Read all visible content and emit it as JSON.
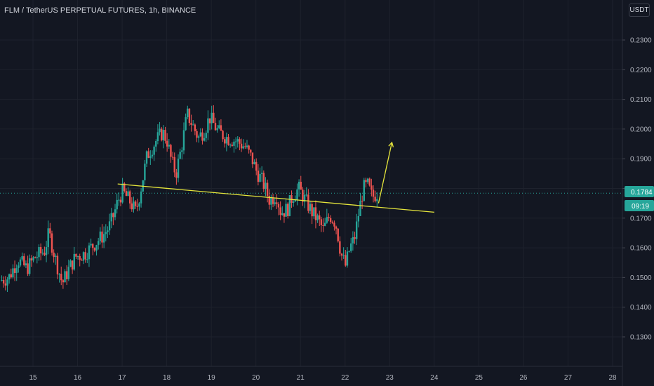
{
  "header": {
    "title": "FLM / TetherUS PERPETUAL FUTURES, 1h, BINANCE",
    "currency": "USDT"
  },
  "price_axis": {
    "last_price": "0.1784",
    "countdown": "09:19"
  },
  "colors": {
    "background": "#131722",
    "up": "#26a69a",
    "down": "#ef5350",
    "trendline": "#e6e63c",
    "last_price_tag": "#26a69a"
  },
  "chart_data": {
    "type": "candlestick",
    "yticks": [
      "0.2300",
      "0.2200",
      "0.2100",
      "0.2000",
      "0.1900",
      "0.1800",
      "0.1700",
      "0.1600",
      "0.1500",
      "0.1400",
      "0.1300"
    ],
    "xticks": [
      "15",
      "16",
      "17",
      "18",
      "19",
      "20",
      "21",
      "22",
      "23",
      "24",
      "25",
      "26",
      "27",
      "28"
    ],
    "ylim": [
      0.12,
      0.24
    ],
    "xlim": [
      14.29,
      28.4
    ],
    "last_price": 0.1784,
    "price_path": [
      [
        14.3,
        0.149
      ],
      [
        14.5,
        0.15
      ],
      [
        14.7,
        0.156
      ],
      [
        14.9,
        0.153
      ],
      [
        15.1,
        0.157
      ],
      [
        15.3,
        0.159
      ],
      [
        15.4,
        0.165
      ],
      [
        15.55,
        0.156
      ],
      [
        15.7,
        0.148
      ],
      [
        15.85,
        0.153
      ],
      [
        16.0,
        0.157
      ],
      [
        16.2,
        0.158
      ],
      [
        16.4,
        0.161
      ],
      [
        16.6,
        0.164
      ],
      [
        16.75,
        0.167
      ],
      [
        16.85,
        0.171
      ],
      [
        16.95,
        0.176
      ],
      [
        17.05,
        0.179
      ],
      [
        17.2,
        0.176
      ],
      [
        17.35,
        0.172
      ],
      [
        17.45,
        0.179
      ],
      [
        17.6,
        0.191
      ],
      [
        17.8,
        0.196
      ],
      [
        17.95,
        0.199
      ],
      [
        18.05,
        0.196
      ],
      [
        18.15,
        0.189
      ],
      [
        18.25,
        0.185
      ],
      [
        18.4,
        0.196
      ],
      [
        18.5,
        0.205
      ],
      [
        18.6,
        0.202
      ],
      [
        18.75,
        0.197
      ],
      [
        18.9,
        0.2
      ],
      [
        19.0,
        0.204
      ],
      [
        19.2,
        0.199
      ],
      [
        19.4,
        0.197
      ],
      [
        19.6,
        0.196
      ],
      [
        19.8,
        0.194
      ],
      [
        19.95,
        0.19
      ],
      [
        20.05,
        0.186
      ],
      [
        20.2,
        0.182
      ],
      [
        20.35,
        0.176
      ],
      [
        20.5,
        0.178
      ],
      [
        20.6,
        0.172
      ],
      [
        20.75,
        0.173
      ],
      [
        20.85,
        0.177
      ],
      [
        21.0,
        0.18
      ],
      [
        21.15,
        0.176
      ],
      [
        21.3,
        0.172
      ],
      [
        21.45,
        0.169
      ],
      [
        21.55,
        0.166
      ],
      [
        21.7,
        0.171
      ],
      [
        21.8,
        0.169
      ],
      [
        21.85,
        0.167
      ],
      [
        21.95,
        0.158
      ],
      [
        22.05,
        0.154
      ],
      [
        22.15,
        0.16
      ],
      [
        22.25,
        0.163
      ],
      [
        22.35,
        0.172
      ],
      [
        22.45,
        0.18
      ],
      [
        22.55,
        0.181
      ],
      [
        22.65,
        0.177
      ],
      [
        22.75,
        0.1784
      ]
    ],
    "trendline": {
      "from": [
        16.9,
        0.1815
      ],
      "to": [
        24.0,
        0.172
      ]
    },
    "arrow": {
      "from": [
        22.75,
        0.175
      ],
      "to": [
        23.05,
        0.1955
      ]
    }
  }
}
